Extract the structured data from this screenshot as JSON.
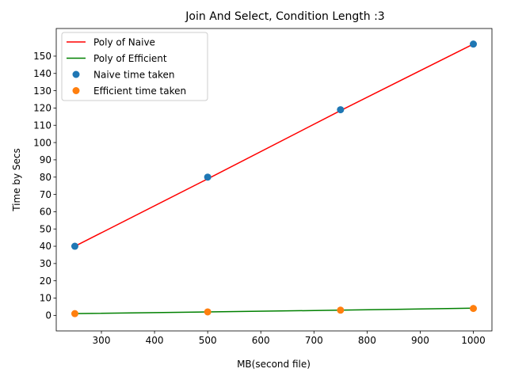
{
  "chart_data": {
    "type": "scatter",
    "title": "Join And Select, Condition Length :3",
    "xlabel": "MB(second file)",
    "ylabel": "Time by Secs",
    "xlim": [
      215,
      1035
    ],
    "ylim": [
      -9,
      166
    ],
    "xticks": [
      300,
      400,
      500,
      600,
      700,
      800,
      900,
      1000
    ],
    "yticks": [
      0,
      10,
      20,
      30,
      40,
      50,
      60,
      70,
      80,
      90,
      100,
      110,
      120,
      130,
      140,
      150
    ],
    "grid": false,
    "legend_position": "top-left",
    "lines": [
      {
        "name": "Poly of Naive",
        "color": "#ff0000",
        "x": [
          250,
          500,
          750,
          1000
        ],
        "y": [
          40,
          79,
          118.5,
          157
        ]
      },
      {
        "name": "Poly of Efficient",
        "color": "#008000",
        "x": [
          250,
          500,
          750,
          1000
        ],
        "y": [
          1,
          2,
          3,
          4.2
        ]
      }
    ],
    "series": [
      {
        "name": "Naive time taken",
        "color": "#1f77b4",
        "x": [
          250,
          500,
          750,
          1000
        ],
        "y": [
          40,
          80,
          119,
          157
        ]
      },
      {
        "name": "Efficient time taken",
        "color": "#ff7f0e",
        "x": [
          250,
          500,
          750,
          1000
        ],
        "y": [
          1,
          2,
          3,
          4
        ]
      }
    ]
  }
}
